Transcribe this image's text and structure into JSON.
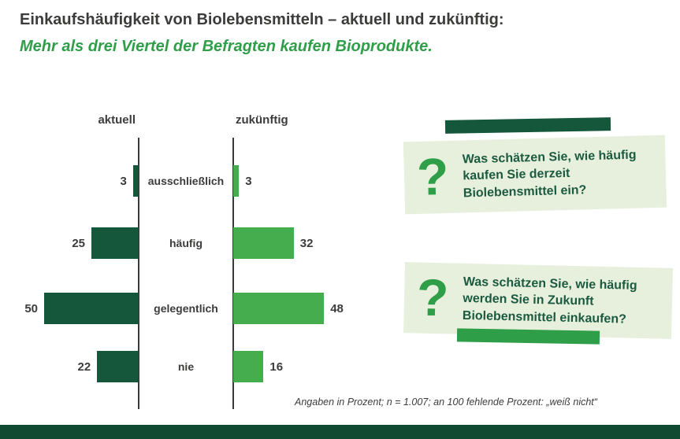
{
  "title": "Einkaufshäufigkeit von Biolebensmitteln – aktuell und zukünftig:",
  "subtitle": "Mehr als drei Viertel der Befragten kaufen Bioprodukte.",
  "chart_data": {
    "type": "bar",
    "variant": "butterfly",
    "categories": [
      "ausschließlich",
      "häufig",
      "gelegentlich",
      "nie"
    ],
    "series": [
      {
        "name": "aktuell",
        "direction": "left",
        "color": "#14573a",
        "values": [
          3,
          25,
          50,
          22
        ]
      },
      {
        "name": "zukünftig",
        "direction": "right",
        "color": "#45ad4e",
        "values": [
          3,
          32,
          48,
          16
        ]
      }
    ],
    "unit": "Prozent",
    "xlim": [
      0,
      55
    ],
    "legend_position": "column-headers",
    "grid": false
  },
  "questions": [
    {
      "icon": "question-mark-icon",
      "text": "Was schätzen Sie, wie häufig kaufen Sie derzeit Biolebensmittel ein?"
    },
    {
      "icon": "question-mark-icon",
      "text": "Was schätzen Sie, wie häufig werden Sie in Zukunft Biolebensmittel einkaufen?"
    }
  ],
  "footnote": "Angaben in Prozent; n = 1.007; an 100 fehlende Prozent: „weiß nicht“",
  "colors": {
    "text_dark": "#3c3c3b",
    "green": "#2f9e48",
    "dark_green": "#14573a",
    "light_green": "#45ad4e",
    "box_bg": "#e7f0dd",
    "strip": "#0f4a31"
  }
}
